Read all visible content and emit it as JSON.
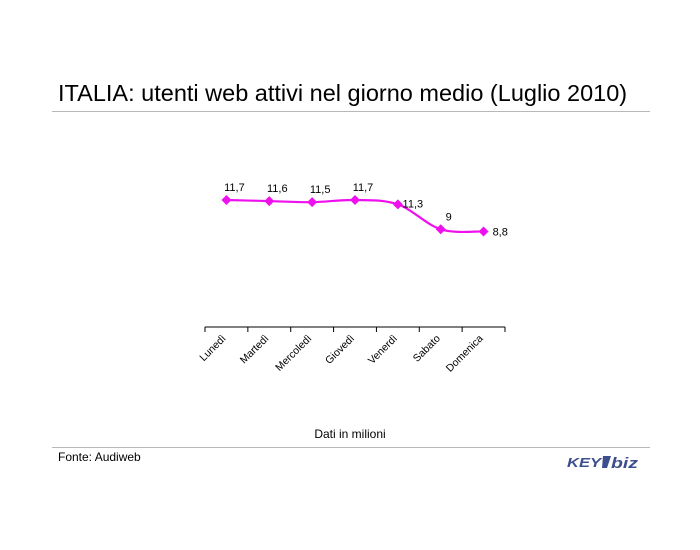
{
  "title": "ITALIA: utenti web attivi nel giorno medio (Luglio 2010)",
  "note": "Dati in milioni",
  "source": "Fonte: Audiweb",
  "logo_text": "KEY4biz",
  "colors": {
    "series": "#ee11ee",
    "rule": "#b8b8b8",
    "logo": "#3d4f8f"
  },
  "chart_data": {
    "type": "line",
    "categories": [
      "Lunedì",
      "Martedì",
      "Mercoledì",
      "Giovedì",
      "Venerdì",
      "Sabato",
      "Domenica"
    ],
    "series": [
      {
        "values": [
          11.7,
          11.6,
          11.5,
          11.7,
          11.3,
          9,
          8.8
        ],
        "labels": [
          "11,7",
          "11,6",
          "11,5",
          "11,7",
          "11,3",
          "9",
          "8,8"
        ]
      }
    ],
    "title": "ITALIA: utenti web attivi nel giorno medio (Luglio 2010)",
    "xlabel": "",
    "ylabel": "",
    "grid": false,
    "legend": "none"
  }
}
